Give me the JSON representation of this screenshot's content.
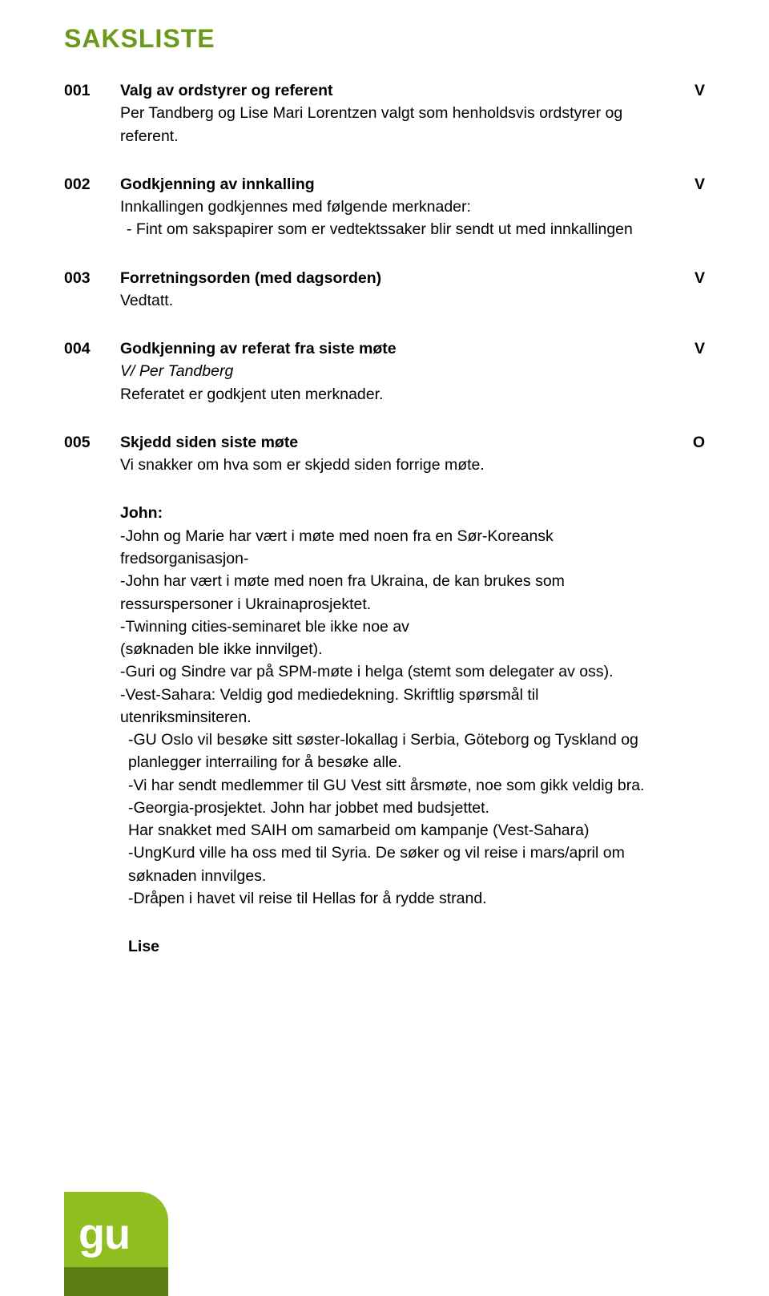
{
  "colors": {
    "heading": "#6b9a1a",
    "text": "#000000",
    "background": "#ffffff",
    "logo_light": "#8fbf21",
    "logo_dark": "#5b7f15",
    "logo_text": "#ffffff"
  },
  "fonts": {
    "heading_family": "Arial Narrow",
    "heading_size_pt": 24,
    "body_family": "Verdana",
    "body_size_pt": 14
  },
  "heading": "SAKSLISTE",
  "items": [
    {
      "num": "001",
      "title": "Valg av ordstyrer og referent",
      "marker": "V",
      "lines": [
        "Per Tandberg og Lise Mari Lorentzen valgt som henholdsvis ordstyrer og referent."
      ]
    },
    {
      "num": "002",
      "title": "Godkjenning av innkalling",
      "marker": "V",
      "lines": [
        "Innkallingen godkjennes med følgende merknader:"
      ],
      "dash_lines": [
        "-   Fint om sakspapirer som er vedtektssaker blir sendt ut med innkallingen"
      ]
    },
    {
      "num": "003",
      "title": "Forretningsorden (med dagsorden)",
      "marker": "V",
      "lines": [
        "Vedtatt."
      ]
    },
    {
      "num": "004",
      "title": "Godkjenning av referat fra siste møte",
      "marker": "V",
      "italic_line": "V/ Per Tandberg",
      "lines": [
        "Referatet er godkjent uten merknader."
      ]
    },
    {
      "num": "005",
      "title": "Skjedd siden siste møte",
      "marker": "O",
      "lines": [
        "Vi snakker om hva som er skjedd siden forrige møte."
      ]
    }
  ],
  "detail": {
    "label_john": "John:",
    "john_lines": [
      "-John og Marie har vært i møte med noen fra en Sør-Koreansk fredsorganisasjon-",
      "-John har vært i møte med noen fra Ukraina, de kan brukes som ressurspersoner i Ukrainaprosjektet.",
      "-Twinning cities-seminaret ble ikke noe av",
      "(søknaden ble ikke innvilget).",
      "-Guri og Sindre var på SPM-møte i helga (stemt som delegater av oss).",
      "-Vest-Sahara: Veldig god mediedekning. Skriftlig spørsmål til utenriksminsiteren."
    ],
    "john_nudged_lines": [
      "-GU Oslo vil besøke sitt søster-lokallag i Serbia, Göteborg og Tyskland og planlegger interrailing for å besøke alle.",
      "-Vi har sendt medlemmer til GU Vest sitt årsmøte, noe som gikk veldig bra.",
      "-Georgia-prosjektet. John har jobbet med budsjettet.",
      "Har snakket med SAIH om samarbeid om kampanje (Vest-Sahara)",
      "-UngKurd ville ha oss med til Syria. De søker og vil reise i mars/april om søknaden innvilges.",
      "-Dråpen i havet vil reise til Hellas for å rydde strand."
    ],
    "label_lise": "Lise"
  },
  "logo_text": "gu"
}
